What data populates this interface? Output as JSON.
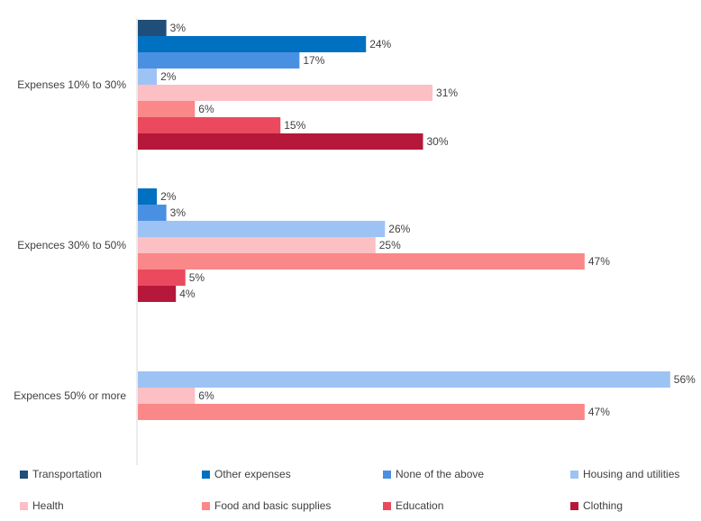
{
  "chart_data": {
    "type": "bar",
    "orientation": "horizontal",
    "categories": [
      "Expenses 10% to 30%",
      "Expences 30% to 50%",
      "Expences 50% or more"
    ],
    "series": [
      {
        "name": "Transportation",
        "color": "#1F4E79",
        "values": [
          3,
          null,
          null
        ]
      },
      {
        "name": "Other expenses",
        "color": "#0070C0",
        "values": [
          24,
          2,
          null
        ]
      },
      {
        "name": "None of the above",
        "color": "#4A90E2",
        "values": [
          17,
          3,
          null
        ]
      },
      {
        "name": "Housing and utilities",
        "color": "#9DC3F5",
        "values": [
          2,
          26,
          56
        ]
      },
      {
        "name": "Health",
        "color": "#FBBFC4",
        "values": [
          31,
          25,
          6
        ]
      },
      {
        "name": "Food and basic supplies",
        "color": "#FA8888",
        "values": [
          6,
          47,
          47
        ]
      },
      {
        "name": "Education",
        "color": "#EB4A5E",
        "values": [
          15,
          5,
          null
        ]
      },
      {
        "name": "Clothing",
        "color": "#B5183A",
        "values": [
          30,
          4,
          null
        ]
      }
    ],
    "value_suffix": "%",
    "xlim": [
      0,
      56
    ],
    "grid": false,
    "legend_position": "bottom"
  }
}
